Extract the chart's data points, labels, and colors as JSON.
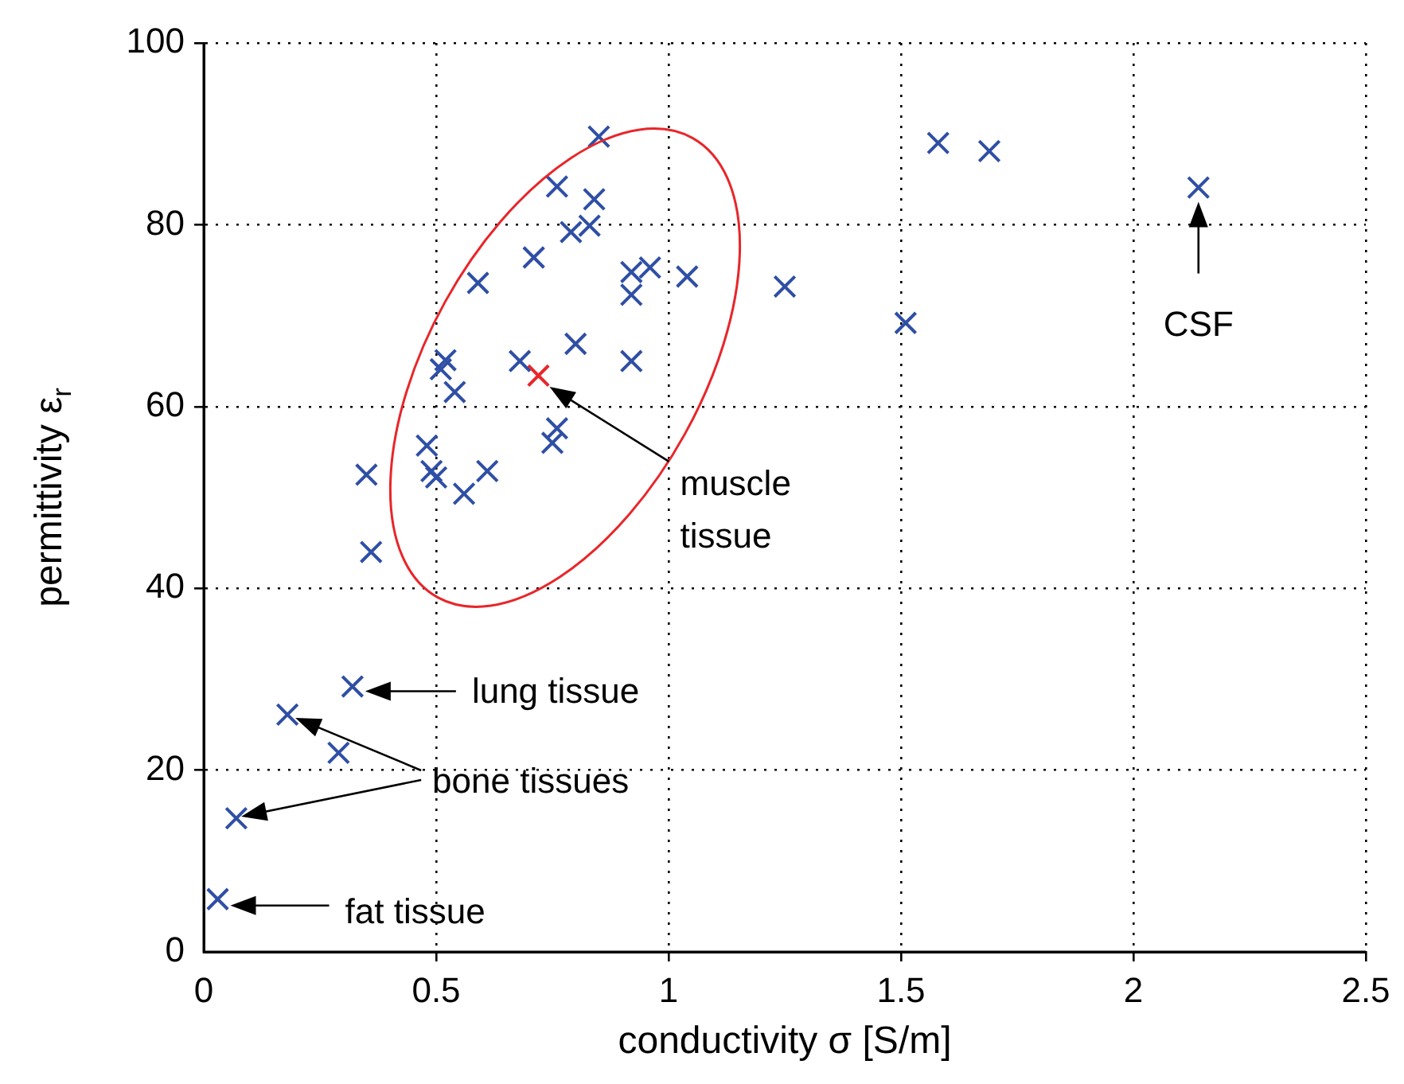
{
  "chart_data": {
    "type": "scatter",
    "xlabel": "conductivity σ [S/m]",
    "ylabel": "permittivity ε$_{r}$",
    "xlim": [
      0,
      2.5
    ],
    "xticks": [
      0,
      0.5,
      1,
      1.5,
      2,
      2.5
    ],
    "ylim": [
      0,
      100
    ],
    "yticks": [
      0,
      20,
      40,
      60,
      80,
      100
    ],
    "grid": true,
    "legend": false,
    "marker": "cross",
    "series": [
      {
        "color": "#2f4fa5",
        "x": [
          0.07,
          0.03,
          0.18,
          0.32,
          0.29,
          0.35,
          0.36,
          0.48,
          0.49,
          0.5,
          0.56,
          0.61,
          0.51,
          0.52,
          0.54,
          0.59,
          0.71,
          0.68,
          0.76,
          0.75,
          0.8,
          0.76,
          0.85,
          0.79,
          0.83,
          0.84,
          0.92,
          0.92,
          0.96,
          0.92,
          1.04,
          1.25,
          1.51,
          1.58,
          1.69,
          2.14
        ],
        "values": [
          14.7,
          5.8,
          26.1,
          29.2,
          21.9,
          52.5,
          44,
          55.7,
          52.9,
          52.2,
          50.4,
          52.9,
          64.1,
          65.1,
          61.6,
          73.6,
          76.4,
          65,
          57.6,
          56,
          66.9,
          84.2,
          89.7,
          79.2,
          79.9,
          82.8,
          74.8,
          72.3,
          75.3,
          65,
          74.3,
          73.2,
          69.2,
          89,
          88.1,
          84.1
        ]
      },
      {
        "color": "#e8262a",
        "x": [
          0.72
        ],
        "values": [
          63.4
        ]
      }
    ],
    "annotations": [
      "muscle\ntissue",
      "CSF",
      "lung tissue",
      "bone tissues",
      "fat tissue"
    ]
  }
}
